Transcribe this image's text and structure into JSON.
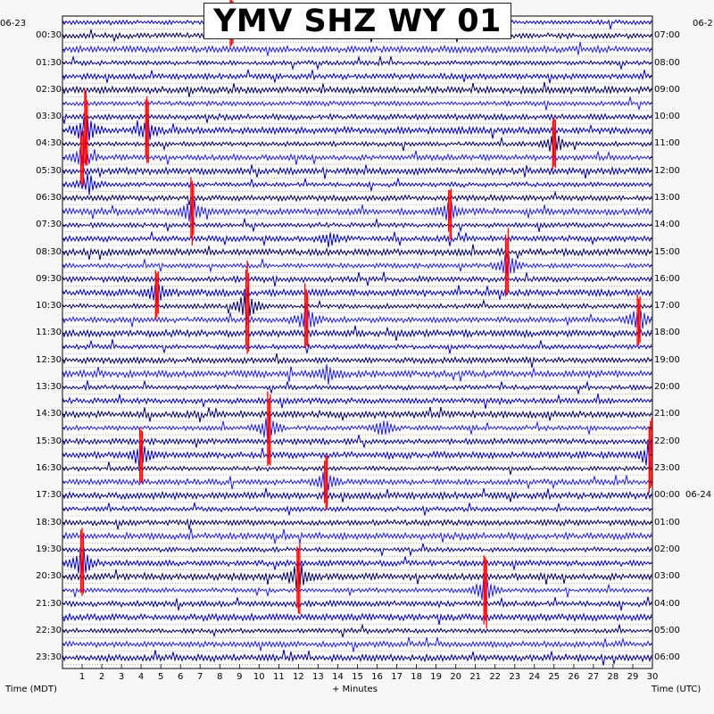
{
  "chart_data": {
    "type": "helicorder",
    "title": "YMV SHZ WY 01",
    "xlabel": "+ Minutes",
    "left_axis_title": "Time (MDT)",
    "right_axis_title": "Time (UTC)",
    "xlim": [
      0,
      30
    ],
    "x_ticks": [
      "1",
      "2",
      "3",
      "4",
      "5",
      "6",
      "7",
      "8",
      "9",
      "10",
      "11",
      "12",
      "13",
      "14",
      "15",
      "16",
      "17",
      "18",
      "19",
      "20",
      "21",
      "22",
      "23",
      "24",
      "25",
      "26",
      "27",
      "28",
      "29",
      "30"
    ],
    "left_date": "06-23",
    "right_date": "06-2",
    "right_date_change": "06-24",
    "left_times": [
      "00:30",
      "01:30",
      "02:30",
      "03:30",
      "04:30",
      "05:30",
      "06:30",
      "07:30",
      "08:30",
      "09:30",
      "10:30",
      "11:30",
      "12:30",
      "13:30",
      "14:30",
      "15:30",
      "16:30",
      "17:30",
      "18:30",
      "19:30",
      "20:30",
      "21:30",
      "22:30",
      "23:30"
    ],
    "right_times": [
      "07:00",
      "08:00",
      "09:00",
      "10:00",
      "11:00",
      "12:00",
      "13:00",
      "14:00",
      "15:00",
      "16:00",
      "17:00",
      "18:00",
      "19:00",
      "20:00",
      "21:00",
      "22:00",
      "23:00",
      "00:00",
      "01:00",
      "02:00",
      "03:00",
      "04:00",
      "05:00",
      "06:00"
    ],
    "trace_colors": [
      "#0000cc",
      "#000066",
      "#2020ee",
      "#000099"
    ],
    "clip_color": "#ff0000",
    "grid": "dotted",
    "events": [
      {
        "line": 0,
        "minute": 8.6,
        "amplitude": 1.6
      },
      {
        "line": 8,
        "minute": 1.2,
        "amplitude": 2.2
      },
      {
        "line": 8,
        "minute": 4.3,
        "amplitude": 1.8
      },
      {
        "line": 10,
        "minute": 1.0,
        "amplitude": 1.5
      },
      {
        "line": 9,
        "minute": 25.0,
        "amplitude": 1.5
      },
      {
        "line": 12,
        "minute": 1.3,
        "amplitude": 1.3
      },
      {
        "line": 14,
        "minute": 6.6,
        "amplitude": 1.8
      },
      {
        "line": 14,
        "minute": 19.7,
        "amplitude": 1.5
      },
      {
        "line": 16,
        "minute": 13.6,
        "amplitude": 1.0
      },
      {
        "line": 18,
        "minute": 22.6,
        "amplitude": 2.0
      },
      {
        "line": 20,
        "minute": 4.8,
        "amplitude": 1.5
      },
      {
        "line": 21,
        "minute": 9.4,
        "amplitude": 2.5
      },
      {
        "line": 22,
        "minute": 12.4,
        "amplitude": 2.0
      },
      {
        "line": 22,
        "minute": 29.3,
        "amplitude": 1.6
      },
      {
        "line": 26,
        "minute": 13.5,
        "amplitude": 1.2
      },
      {
        "line": 30,
        "minute": 10.5,
        "amplitude": 2.0
      },
      {
        "line": 30,
        "minute": 16.3,
        "amplitude": 1.2
      },
      {
        "line": 32,
        "minute": 4.0,
        "amplitude": 1.6
      },
      {
        "line": 32,
        "minute": 29.9,
        "amplitude": 2.0
      },
      {
        "line": 34,
        "minute": 13.4,
        "amplitude": 1.6
      },
      {
        "line": 40,
        "minute": 1.0,
        "amplitude": 2.2
      },
      {
        "line": 41,
        "minute": 12.0,
        "amplitude": 2.0
      },
      {
        "line": 42,
        "minute": 21.5,
        "amplitude": 2.0
      }
    ]
  }
}
